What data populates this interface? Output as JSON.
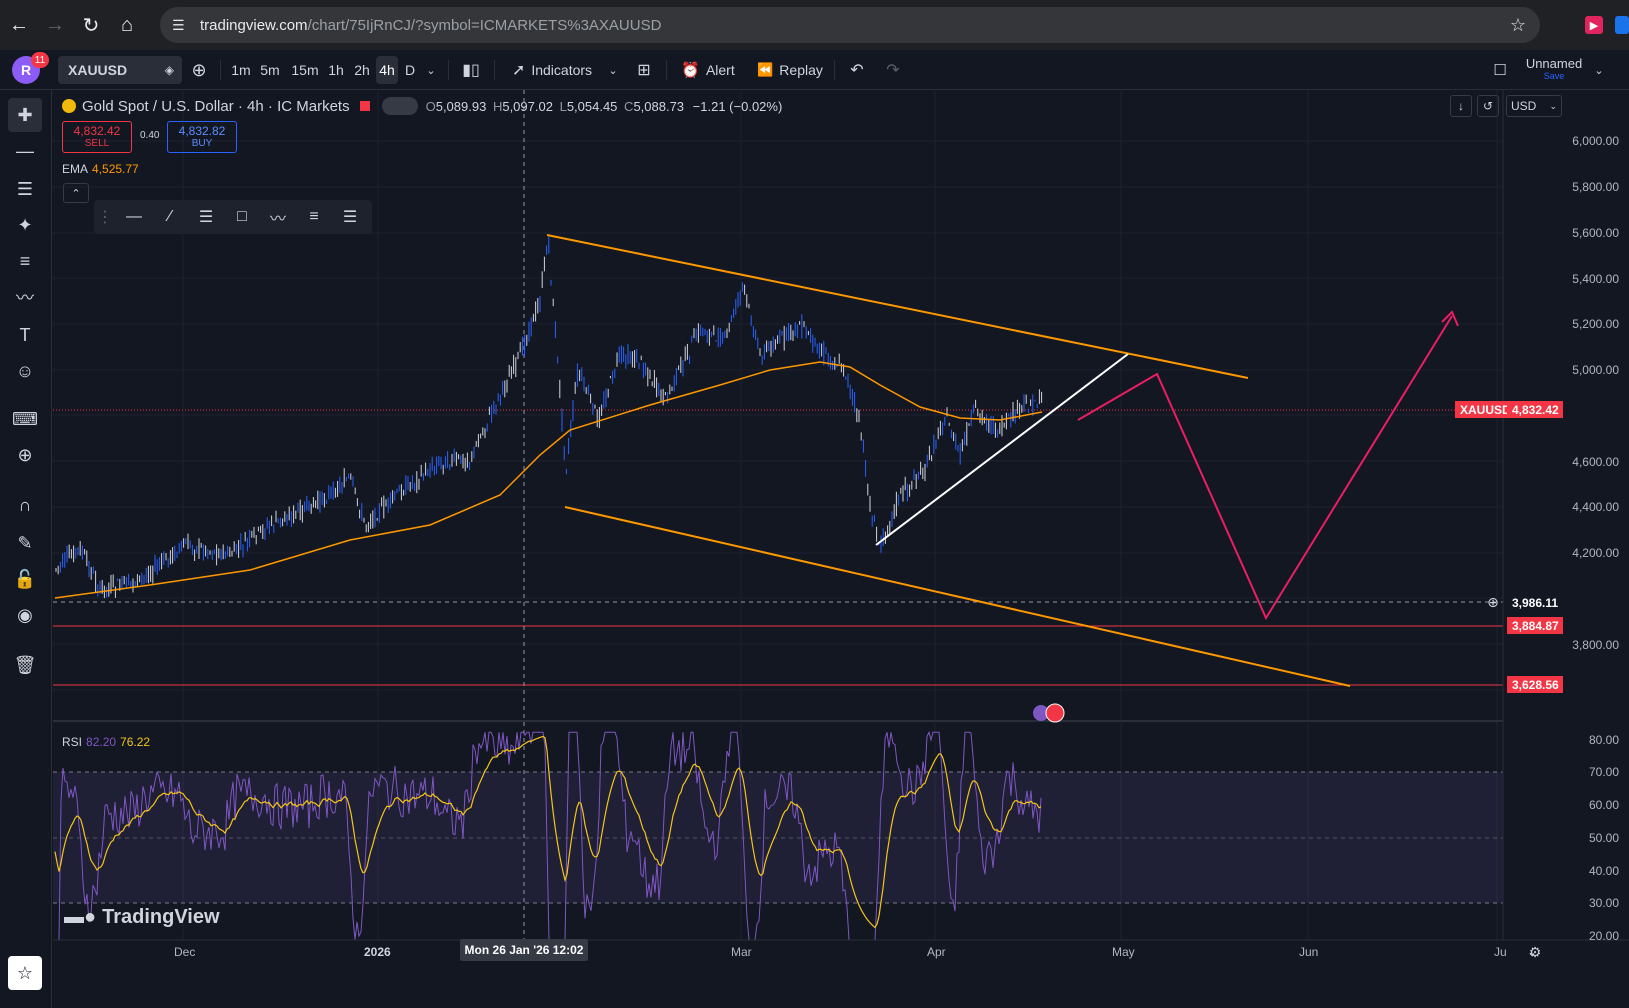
{
  "browser": {
    "url_domain": "tradingview.com",
    "url_path": "/chart/75IjRnCJ/?symbol=ICMARKETS%3AXAUUSD"
  },
  "toolbar": {
    "avatar_letter": "R",
    "notification_count": "11",
    "symbol": "XAUUSD",
    "timeframes": [
      "1m",
      "5m",
      "15m",
      "1h",
      "2h",
      "4h",
      "D"
    ],
    "active_timeframe": "4h",
    "indicators_label": "Indicators",
    "alert_label": "Alert",
    "replay_label": "Replay",
    "layout_name": "Unnamed",
    "save_label": "Save"
  },
  "legend": {
    "title": "Gold Spot / U.S. Dollar · 4h · IC Markets",
    "open_label": "O",
    "open": "5,089.93",
    "high_label": "H",
    "high": "5,097.02",
    "low_label": "L",
    "low": "5,054.45",
    "close_label": "C",
    "close": "5,088.73",
    "change": "−1.21 (−0.02%)",
    "sell_price": "4,832.42",
    "sell_label": "SELL",
    "buy_price": "4,832.82",
    "buy_label": "BUY",
    "spread": "0.40",
    "ema_label": "EMA",
    "ema_value": "4,525.77",
    "rsi_label": "RSI",
    "rsi_value": "82.20",
    "rsi_ma_value": "76.22",
    "currency": "USD"
  },
  "price_axis": {
    "labels": [
      "6,000.00",
      "5,800.00",
      "5,600.00",
      "5,400.00",
      "5,200.00",
      "5,000.00",
      "4,600.00",
      "4,400.00",
      "4,200.00",
      "3,800.00"
    ],
    "current_symbol_tag": "XAUUSD",
    "current_price": "4,832.42",
    "crosshair_price": "3,986.11",
    "level_1": "3,884.87",
    "level_2": "3,628.56"
  },
  "rsi_axis": {
    "labels": [
      "80.00",
      "70.00",
      "60.00",
      "50.00",
      "40.00",
      "30.00",
      "20.00"
    ]
  },
  "time_axis": {
    "labels": [
      "Dec",
      "2026",
      "Mar",
      "Apr",
      "May",
      "Jun",
      "Ju"
    ],
    "crosshair_label": "Mon 26 Jan '26  12:02"
  },
  "branding": "TradingView",
  "colors": {
    "background": "#131722",
    "candle": "#2962ff",
    "ema": "#ff9800",
    "channel": "#ff9800",
    "trendline": "#ffffff",
    "projection": "#e91e63",
    "rsi": "#7e57c2",
    "rsi_ma": "#f5c518",
    "level_line": "#f23645"
  }
}
